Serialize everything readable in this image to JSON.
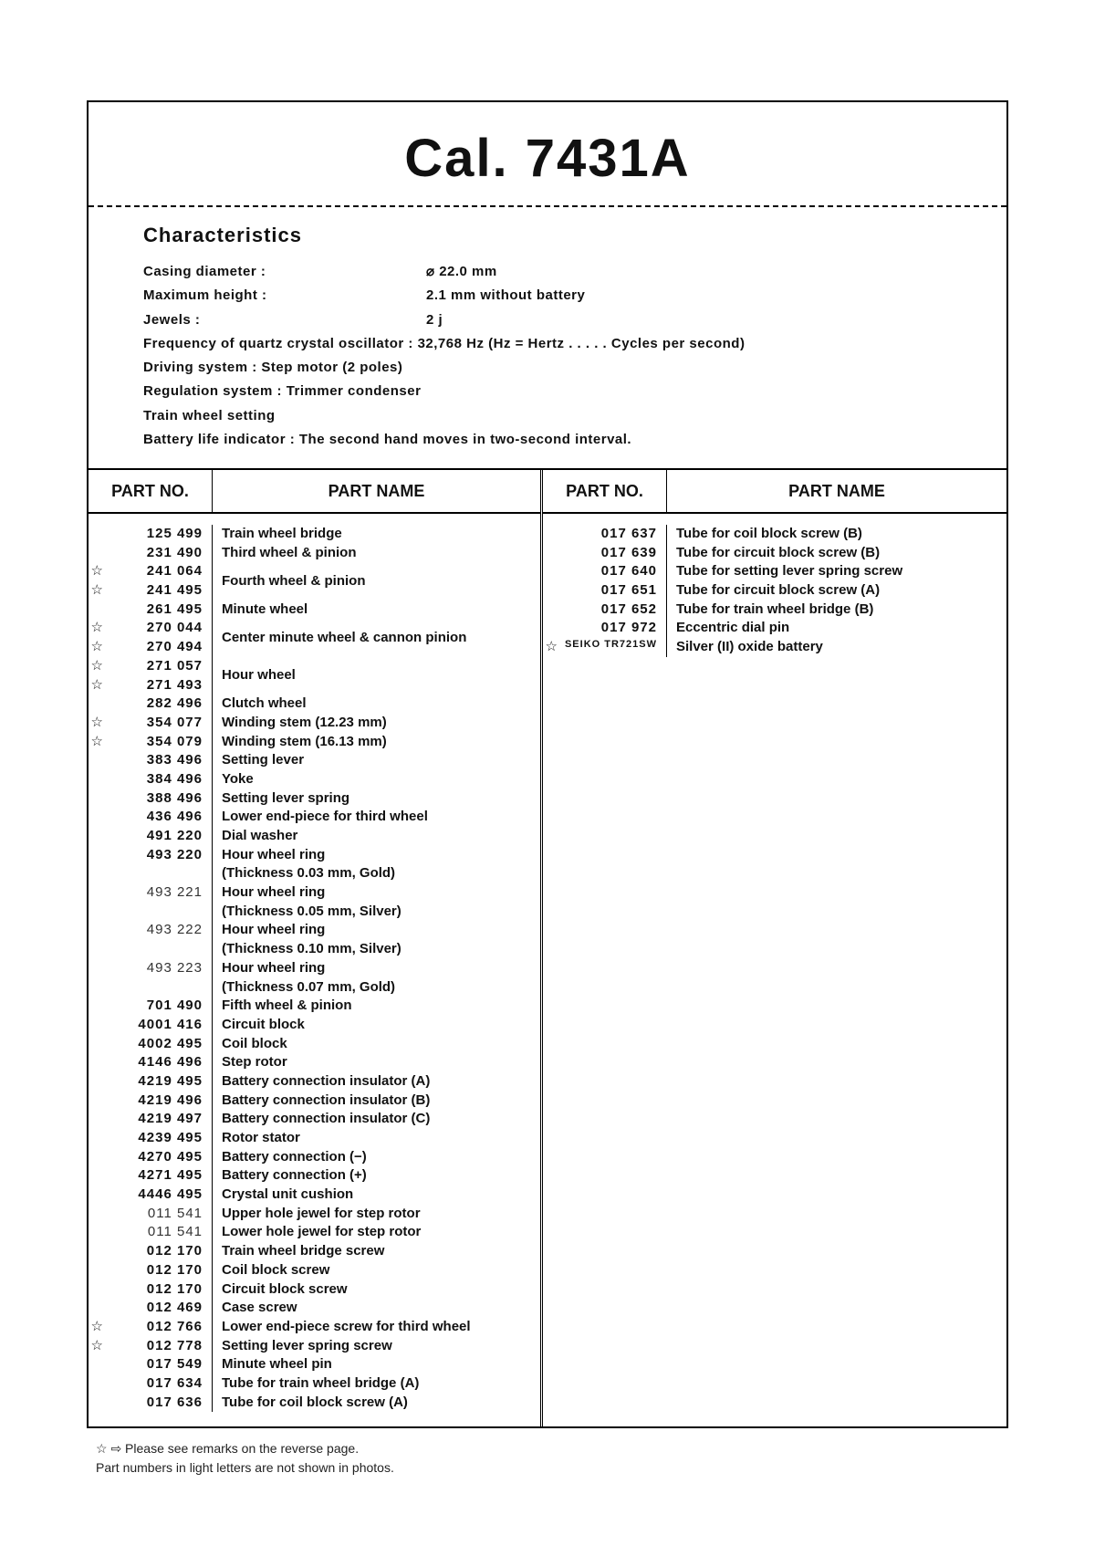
{
  "title": "Cal. 7431A",
  "characteristics": {
    "heading": "Characteristics",
    "pairs": [
      {
        "label": "Casing diameter :",
        "value": "⌀ 22.0 mm"
      },
      {
        "label": "Maximum height :",
        "value": "2.1 mm without battery"
      },
      {
        "label": "Jewels :",
        "value": "2 j"
      }
    ],
    "full_lines": [
      "Frequency of quartz crystal oscillator : 32,768 Hz (Hz = Hertz . . . . . Cycles per second)",
      "Driving system : Step motor (2 poles)",
      "Regulation system : Trimmer condenser",
      "Train wheel setting",
      "Battery life indicator : The second hand moves in two-second interval."
    ]
  },
  "table": {
    "hdr_no": "PART NO.",
    "hdr_name": "PART NAME"
  },
  "left": [
    {
      "no": "125 499",
      "name": "Train wheel bridge"
    },
    {
      "no": "231 490",
      "name": "Third wheel & pinion"
    },
    {
      "star": true,
      "no": "241 064",
      "name": "Fourth wheel & pinion",
      "group": 2
    },
    {
      "star": true,
      "no": "241 495"
    },
    {
      "no": "261 495",
      "name": "Minute wheel"
    },
    {
      "star": true,
      "no": "270 044",
      "name": "Center minute wheel & cannon pinion",
      "group": 2
    },
    {
      "star": true,
      "no": "270 494"
    },
    {
      "star": true,
      "no": "271 057",
      "name": "Hour wheel",
      "group": 2
    },
    {
      "star": true,
      "no": "271 493"
    },
    {
      "no": "282 496",
      "name": "Clutch wheel"
    },
    {
      "star": true,
      "no": "354 077",
      "name": "Winding stem (12.23 mm)"
    },
    {
      "star": true,
      "no": "354 079",
      "name": "Winding stem (16.13 mm)"
    },
    {
      "no": "383 496",
      "name": "Setting lever"
    },
    {
      "no": "384 496",
      "name": "Yoke"
    },
    {
      "no": "388 496",
      "name": "Setting lever spring"
    },
    {
      "no": "436 496",
      "name": "Lower end-piece for third wheel"
    },
    {
      "no": "491 220",
      "name": "Dial washer"
    },
    {
      "no": "493 220",
      "name": "Hour wheel ring"
    },
    {
      "name_only": "(Thickness 0.03 mm, Gold)"
    },
    {
      "light": true,
      "no": "493 221",
      "name": "Hour wheel ring"
    },
    {
      "name_only": "(Thickness 0.05 mm, Silver)"
    },
    {
      "light": true,
      "no": "493 222",
      "name": "Hour wheel ring"
    },
    {
      "name_only": "(Thickness 0.10 mm, Silver)"
    },
    {
      "light": true,
      "no": "493 223",
      "name": "Hour wheel ring"
    },
    {
      "name_only": "(Thickness 0.07 mm, Gold)"
    },
    {
      "no": "701 490",
      "name": "Fifth wheel & pinion"
    },
    {
      "no": "4001 416",
      "name": "Circuit block"
    },
    {
      "no": "4002 495",
      "name": "Coil block"
    },
    {
      "no": "4146 496",
      "name": "Step rotor"
    },
    {
      "no": "4219 495",
      "name": "Battery connection insulator (A)"
    },
    {
      "no": "4219 496",
      "name": "Battery connection insulator (B)"
    },
    {
      "no": "4219 497",
      "name": "Battery connection insulator (C)"
    },
    {
      "no": "4239 495",
      "name": "Rotor stator"
    },
    {
      "no": "4270 495",
      "name": "Battery connection (−)"
    },
    {
      "no": "4271 495",
      "name": "Battery connection (+)"
    },
    {
      "no": "4446 495",
      "name": "Crystal unit cushion"
    },
    {
      "light": true,
      "no": "011 541",
      "name": "Upper hole jewel for step rotor"
    },
    {
      "light": true,
      "no": "011 541",
      "name": "Lower hole jewel for step rotor"
    },
    {
      "no": "012 170",
      "name": "Train wheel bridge screw"
    },
    {
      "no": "012 170",
      "name": "Coil block screw"
    },
    {
      "no": "012 170",
      "name": "Circuit block screw"
    },
    {
      "no": "012 469",
      "name": "Case screw"
    },
    {
      "star": true,
      "no": "012 766",
      "name": "Lower end-piece screw for third wheel"
    },
    {
      "star": true,
      "no": "012 778",
      "name": "Setting lever spring screw"
    },
    {
      "no": "017 549",
      "name": "Minute wheel pin"
    },
    {
      "no": "017 634",
      "name": "Tube for train wheel bridge (A)"
    },
    {
      "no": "017 636",
      "name": "Tube for coil block screw (A)"
    }
  ],
  "right": [
    {
      "no": "017 637",
      "name": "Tube for coil block screw (B)"
    },
    {
      "no": "017 639",
      "name": "Tube for circuit block screw (B)"
    },
    {
      "no": "017 640",
      "name": "Tube for setting lever spring screw"
    },
    {
      "no": "017 651",
      "name": "Tube for circuit block screw (A)"
    },
    {
      "no": "017 652",
      "name": "Tube for train wheel bridge (B)"
    },
    {
      "no": "017 972",
      "name": "Eccentric dial pin"
    },
    {
      "star": true,
      "no": "SEIKO TR721SW",
      "small": true,
      "name": "Silver (II) oxide battery"
    }
  ],
  "footnotes": {
    "l1": "☆ ⇨ Please see remarks on the reverse page.",
    "l2": "Part numbers in light letters are not shown in photos."
  }
}
